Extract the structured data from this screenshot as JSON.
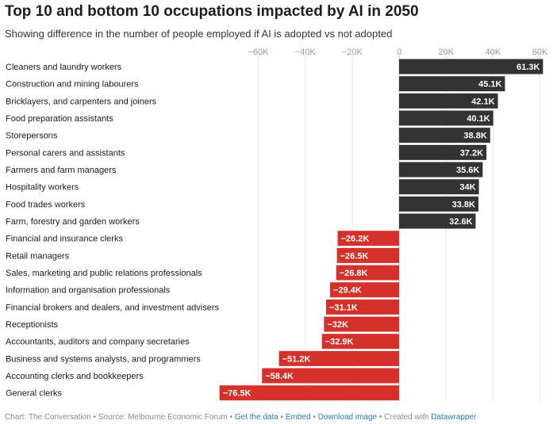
{
  "header": {
    "title": "Top 10 and bottom 10 occupations impacted by AI in 2050",
    "subtitle": "Showing difference in the number of people employed if AI is adopted vs not adopted"
  },
  "footer": {
    "chart_credit": "Chart: The Conversation",
    "source": "Source: Melbourne Economic Forum",
    "sep": " • ",
    "get_data": "Get the data",
    "embed": "Embed",
    "download": "Download image",
    "created_with": "Created with",
    "datawrapper": "Datawrapper"
  },
  "chart_data": {
    "type": "bar",
    "orientation": "horizontal",
    "title": "Top 10 and bottom 10 occupations impacted by AI in 2050",
    "subtitle": "Showing difference in the number of people employed if AI is adopted vs not adopted",
    "categories": [
      "Cleaners and laundry workers",
      "Construction and mining labourers",
      "Bricklayers, and carpenters and joiners",
      "Food preparation assistants",
      "Storepersons",
      "Personal carers and assistants",
      "Farmers and farm managers",
      "Hospitality workers",
      "Food trades workers",
      "Farm, forestry and garden workers",
      "Financial and insurance clerks",
      "Retail managers",
      "Sales, marketing and public relations professionals",
      "Information and organisation professionals",
      "Financial brokers and dealers, and investment advisers",
      "Receptionists",
      "Accountants, auditors and company secretaries",
      "Business and systems analysts, and programmers",
      "Accounting clerks and bookkeepers",
      "General clerks"
    ],
    "values": [
      61300,
      45100,
      42100,
      40100,
      38800,
      37200,
      35600,
      34000,
      33800,
      32600,
      -26200,
      -26500,
      -26800,
      -29400,
      -31100,
      -32000,
      -32900,
      -51200,
      -58400,
      -76500
    ],
    "value_labels": [
      "61.3K",
      "45.1K",
      "42.1K",
      "40.1K",
      "38.8K",
      "37.2K",
      "35.6K",
      "34K",
      "33.8K",
      "32.6K",
      "−26.2K",
      "−26.5K",
      "−26.8K",
      "−29.4K",
      "−31.1K",
      "−32K",
      "−32.9K",
      "−51.2K",
      "−58.4K",
      "−76.5K"
    ],
    "x_ticks": [
      -60000,
      -40000,
      -20000,
      0,
      20000,
      40000,
      60000
    ],
    "x_tick_labels": [
      "−60K",
      "−40K",
      "−20K",
      "0",
      "20K",
      "40K",
      "60K"
    ],
    "xlim": [
      -80000,
      65000
    ],
    "grid": true,
    "colors": {
      "positive": "#333333",
      "negative": "#d5312b",
      "grid": "#e5e5e5",
      "zero_line": "#c4c4c4",
      "tick_text": "#9a9a9a",
      "label_text": "#ffffff"
    }
  }
}
